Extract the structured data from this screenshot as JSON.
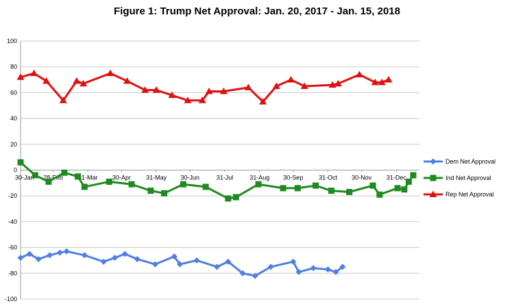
{
  "chart_data": {
    "type": "line",
    "title": "Figure 1: Trump Net Approval: Jan. 20, 2017 - Jan. 15, 2018",
    "xlabel": "",
    "ylabel": "",
    "ylim": [
      -100,
      100
    ],
    "yticks": [
      "100",
      "80",
      "60",
      "40",
      "20",
      "0",
      "-20",
      "-40",
      "-60",
      "-80",
      "-100"
    ],
    "xticks": [
      {
        "label": "30-Jan",
        "date": "2017-01-30"
      },
      {
        "label": "28-Feb",
        "date": "2017-02-28"
      },
      {
        "label": "31-Mar",
        "date": "2017-03-31"
      },
      {
        "label": "30-Apr",
        "date": "2017-04-30"
      },
      {
        "label": "31-May",
        "date": "2017-05-31"
      },
      {
        "label": "30-Jun",
        "date": "2017-06-30"
      },
      {
        "label": "31-Jul",
        "date": "2017-07-31"
      },
      {
        "label": "31-Aug",
        "date": "2017-08-31"
      },
      {
        "label": "30-Sep",
        "date": "2017-09-30"
      },
      {
        "label": "31-Oct",
        "date": "2017-10-31"
      },
      {
        "label": "30-Nov",
        "date": "2017-11-30"
      },
      {
        "label": "31-Dec",
        "date": "2017-12-31"
      }
    ],
    "xrange": [
      "2017-01-30",
      "2018-01-15"
    ],
    "grid": "horizontal",
    "legend_position": "right",
    "series": [
      {
        "name": "Dem Net Approval",
        "color": "#4f7fe0",
        "marker": "diamond",
        "points": [
          [
            "2017-01-30",
            -68
          ],
          [
            "2017-02-07",
            -65
          ],
          [
            "2017-02-15",
            -69
          ],
          [
            "2017-02-25",
            -66
          ],
          [
            "2017-03-06",
            -64
          ],
          [
            "2017-03-12",
            -63
          ],
          [
            "2017-03-28",
            -66
          ],
          [
            "2017-04-14",
            -71
          ],
          [
            "2017-04-24",
            -68
          ],
          [
            "2017-05-03",
            -65
          ],
          [
            "2017-05-14",
            -69
          ],
          [
            "2017-05-30",
            -73
          ],
          [
            "2017-06-16",
            -67
          ],
          [
            "2017-06-21",
            -73
          ],
          [
            "2017-07-06",
            -70
          ],
          [
            "2017-07-24",
            -75
          ],
          [
            "2017-08-03",
            -71
          ],
          [
            "2017-08-16",
            -80
          ],
          [
            "2017-08-27",
            -82
          ],
          [
            "2017-09-10",
            -75
          ],
          [
            "2017-09-30",
            -71
          ],
          [
            "2017-10-05",
            -79
          ],
          [
            "2017-10-18",
            -76
          ],
          [
            "2017-10-31",
            -77
          ],
          [
            "2017-11-07",
            -79
          ],
          [
            "2017-11-13",
            -75
          ]
        ]
      },
      {
        "name": "Ind Net Approval",
        "color": "#1f8a1f",
        "marker": "square",
        "points": [
          [
            "2017-01-30",
            6
          ],
          [
            "2017-02-12",
            -4
          ],
          [
            "2017-02-24",
            -9
          ],
          [
            "2017-03-10",
            -2
          ],
          [
            "2017-03-22",
            -5
          ],
          [
            "2017-03-28",
            -13
          ],
          [
            "2017-04-19",
            -9
          ],
          [
            "2017-05-09",
            -11
          ],
          [
            "2017-05-26",
            -16
          ],
          [
            "2017-06-07",
            -18
          ],
          [
            "2017-06-24",
            -11
          ],
          [
            "2017-07-14",
            -13
          ],
          [
            "2017-08-03",
            -22
          ],
          [
            "2017-08-10",
            -21
          ],
          [
            "2017-08-30",
            -11
          ],
          [
            "2017-09-21",
            -14
          ],
          [
            "2017-10-04",
            -14
          ],
          [
            "2017-10-20",
            -12
          ],
          [
            "2017-11-03",
            -16
          ],
          [
            "2017-11-19",
            -17
          ],
          [
            "2017-12-10",
            -12
          ],
          [
            "2017-12-16",
            -19
          ],
          [
            "2018-01-01",
            -14
          ],
          [
            "2018-01-07",
            -15
          ],
          [
            "2018-01-11",
            -9
          ],
          [
            "2018-01-15",
            -4
          ]
        ]
      },
      {
        "name": "Rep Net Approval",
        "color": "#e01010",
        "marker": "triangle",
        "points": [
          [
            "2017-01-30",
            72
          ],
          [
            "2017-02-11",
            75
          ],
          [
            "2017-02-22",
            69
          ],
          [
            "2017-03-09",
            54
          ],
          [
            "2017-03-21",
            69
          ],
          [
            "2017-03-27",
            67
          ],
          [
            "2017-04-20",
            75
          ],
          [
            "2017-05-05",
            69
          ],
          [
            "2017-05-21",
            62
          ],
          [
            "2017-05-31",
            62
          ],
          [
            "2017-06-14",
            58
          ],
          [
            "2017-06-28",
            54
          ],
          [
            "2017-07-11",
            54
          ],
          [
            "2017-07-17",
            61
          ],
          [
            "2017-07-30",
            61
          ],
          [
            "2017-08-21",
            64
          ],
          [
            "2017-09-03",
            53
          ],
          [
            "2017-09-15",
            65
          ],
          [
            "2017-09-28",
            70
          ],
          [
            "2017-10-10",
            65
          ],
          [
            "2017-11-04",
            66
          ],
          [
            "2017-11-09",
            67
          ],
          [
            "2017-11-28",
            74
          ],
          [
            "2017-12-12",
            68
          ],
          [
            "2017-12-18",
            68
          ],
          [
            "2017-12-24",
            70
          ]
        ]
      }
    ]
  }
}
